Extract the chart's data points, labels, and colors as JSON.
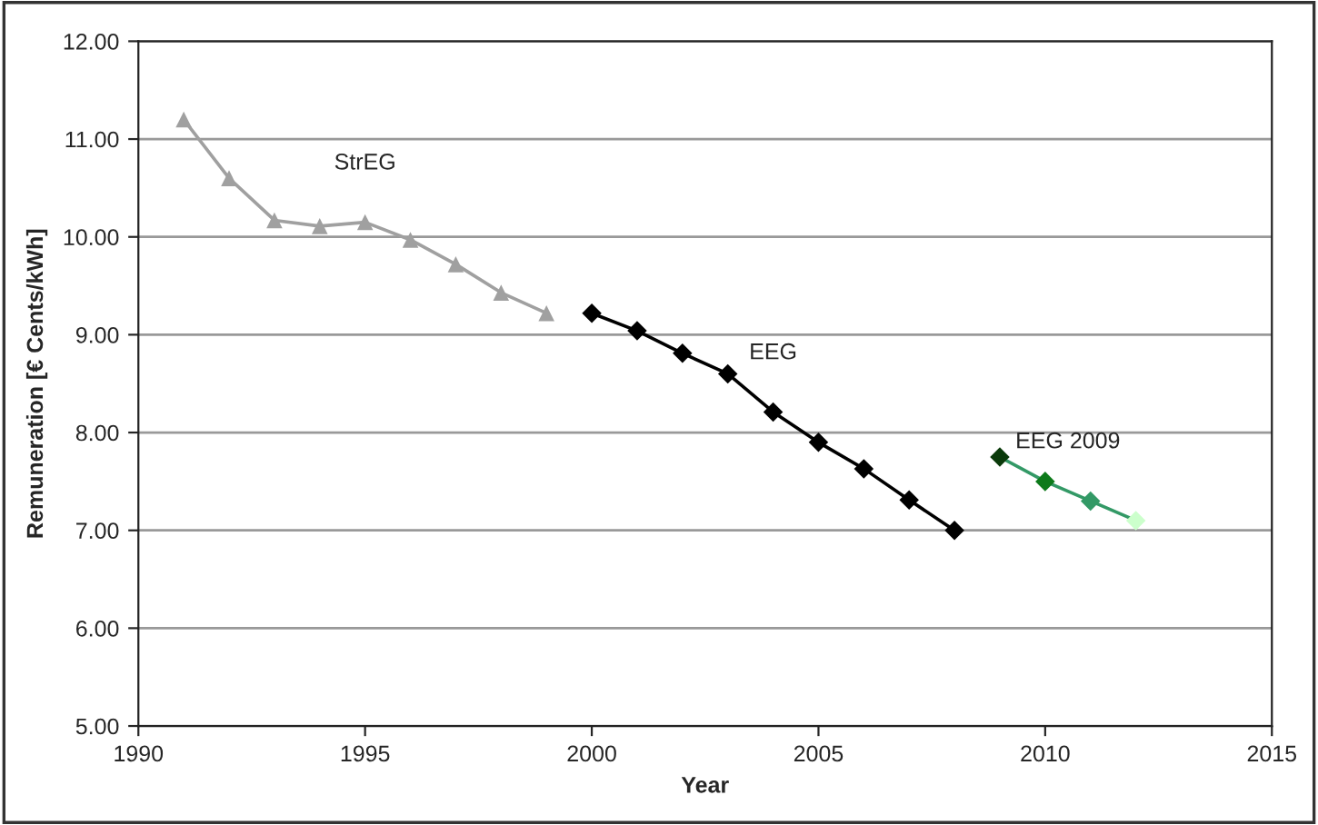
{
  "chart_data": {
    "type": "line",
    "xlabel": "Year",
    "ylabel": "Remuneration [€ Cents/kWh]",
    "xlim": [
      1990,
      2015
    ],
    "xticks": [
      1990,
      1995,
      2000,
      2005,
      2010,
      2015
    ],
    "ylim": [
      5,
      12
    ],
    "yticks": [
      {
        "value": 5,
        "label": "5.00"
      },
      {
        "value": 6,
        "label": "6.00"
      },
      {
        "value": 7,
        "label": "7.00"
      },
      {
        "value": 8,
        "label": "8.00"
      },
      {
        "value": 9,
        "label": "9.00"
      },
      {
        "value": 10,
        "label": "10.00"
      },
      {
        "value": 11,
        "label": "11.00"
      },
      {
        "value": 12,
        "label": "12.00"
      }
    ],
    "grid": "y",
    "legend": false,
    "series": [
      {
        "name": "StrEG",
        "color": "#a0a0a0",
        "marker": "triangle",
        "x": [
          1991,
          1992,
          1993,
          1994,
          1995,
          1996,
          1997,
          1998,
          1999
        ],
        "values": [
          11.2,
          10.6,
          10.17,
          10.11,
          10.15,
          9.97,
          9.72,
          9.43,
          9.22
        ]
      },
      {
        "name": "EEG",
        "color": "#000000",
        "marker": "diamond",
        "x": [
          2000,
          2001,
          2002,
          2003,
          2004,
          2005,
          2006,
          2007,
          2008
        ],
        "values": [
          9.22,
          9.04,
          8.81,
          8.6,
          8.21,
          7.9,
          7.63,
          7.31,
          7.0
        ]
      },
      {
        "name": "EEG 2009",
        "color": "#339966",
        "colors": [
          "#0a3a0a",
          "#0d7a1a",
          "#339966",
          "#ccffcc"
        ],
        "marker": "diamond",
        "x": [
          2009,
          2010,
          2011,
          2012
        ],
        "values": [
          7.75,
          7.5,
          7.3,
          7.1
        ]
      }
    ]
  }
}
